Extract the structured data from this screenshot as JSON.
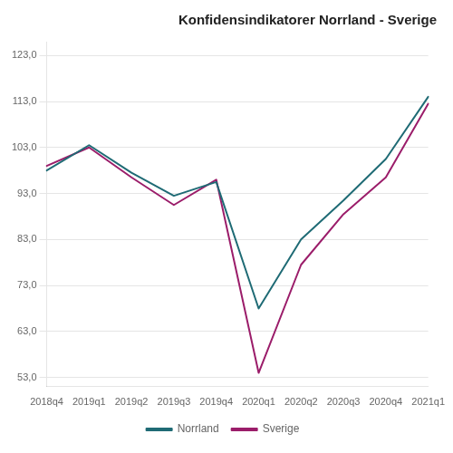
{
  "chart_data": {
    "type": "line",
    "title": "Konfidensindikatorer Norrland - Sverige",
    "categories": [
      "2018q4",
      "2019q1",
      "2019q2",
      "2019q3",
      "2019q4",
      "2020q1",
      "2020q2",
      "2020q3",
      "2020q4",
      "2021q1"
    ],
    "series": [
      {
        "name": "Norrland",
        "color": "#1F6B75",
        "values": [
          98.0,
          103.5,
          97.5,
          92.5,
          95.5,
          68.0,
          83.0,
          91.5,
          100.5,
          114.0
        ]
      },
      {
        "name": "Sverige",
        "color": "#9B1D6A",
        "values": [
          99.0,
          103.0,
          96.5,
          90.5,
          96.0,
          54.0,
          77.5,
          88.5,
          96.5,
          112.5
        ]
      }
    ],
    "ylim": [
      51.0,
      126.0
    ],
    "yticks": [
      {
        "value": 53.0,
        "label": "53,0"
      },
      {
        "value": 63.0,
        "label": "63,0"
      },
      {
        "value": 73.0,
        "label": "73,0"
      },
      {
        "value": 83.0,
        "label": "83,0"
      },
      {
        "value": 93.0,
        "label": "93,0"
      },
      {
        "value": 103.0,
        "label": "103,0"
      },
      {
        "value": 113.0,
        "label": "113,0"
      },
      {
        "value": 123.0,
        "label": "123,0"
      }
    ],
    "grid": "y",
    "legend": "bottom",
    "marker": "none"
  }
}
